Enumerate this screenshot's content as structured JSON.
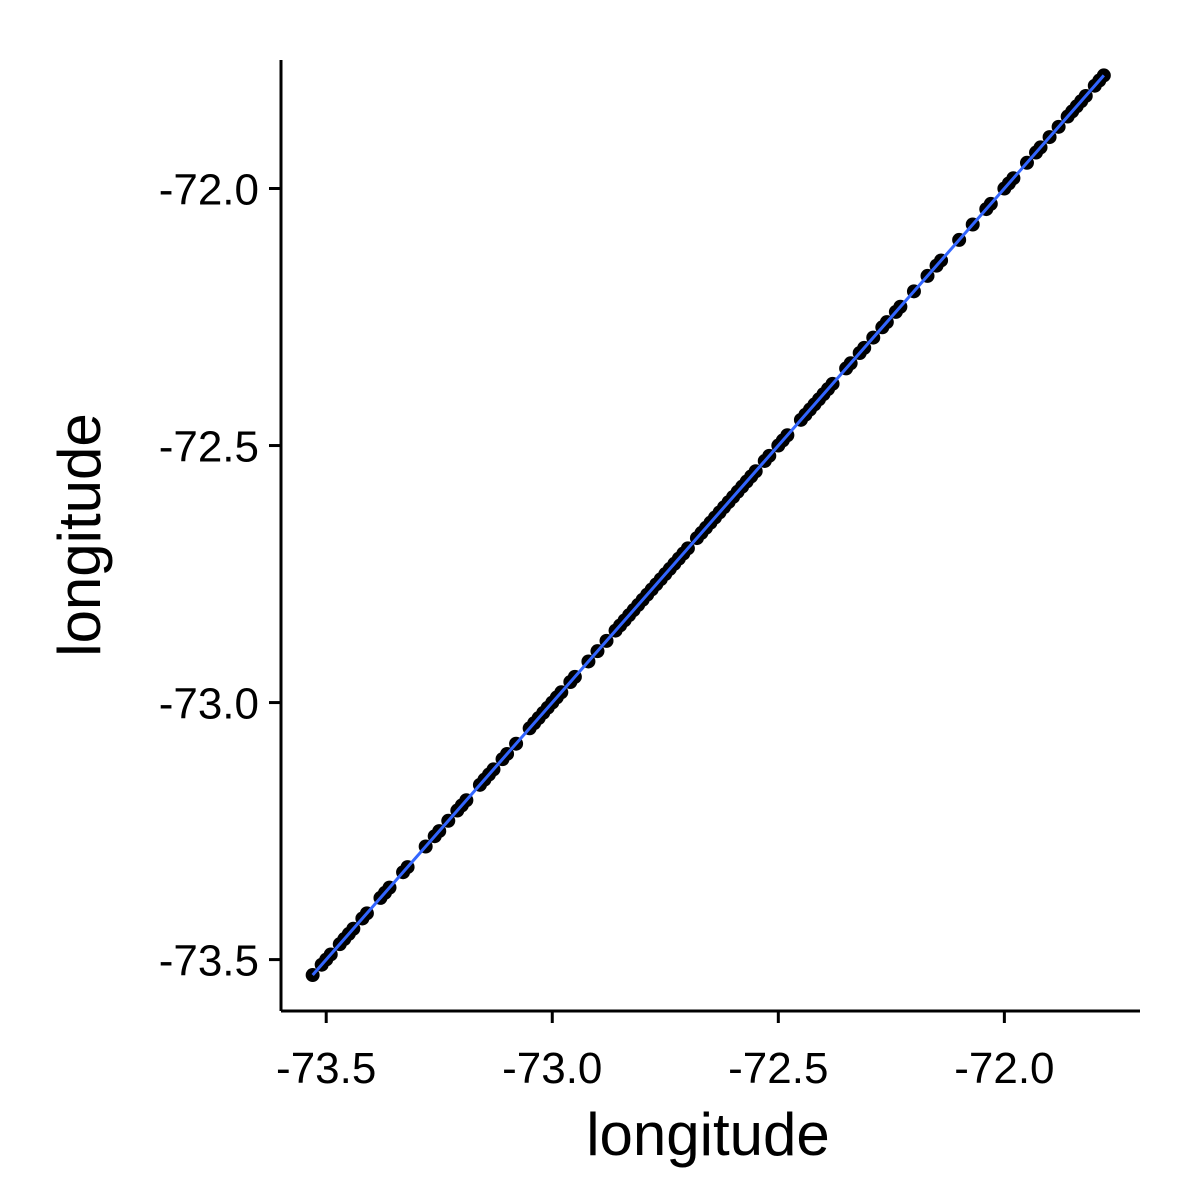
{
  "chart_data": {
    "type": "scatter",
    "title": "",
    "xlabel": "longitude",
    "ylabel": "longitude",
    "xlim": [
      -73.6,
      -71.7
    ],
    "ylim": [
      -73.6,
      -71.75
    ],
    "x_ticks": [
      -73.5,
      -73.0,
      -72.5,
      -72.0
    ],
    "y_ticks": [
      -73.5,
      -73.0,
      -72.5,
      -72.0
    ],
    "x_tick_labels": [
      "-73.5",
      "-73.0",
      "-72.5",
      "-72.0"
    ],
    "y_tick_labels": [
      "-73.5",
      "-73.0",
      "-72.5",
      "-72.0"
    ],
    "grid": false,
    "legend": "none",
    "point_color": "#000000",
    "fit_line": {
      "type": "linear",
      "color": "#3366ff",
      "x": [
        -73.53,
        -71.78
      ],
      "y": [
        -73.53,
        -71.78
      ]
    },
    "points": {
      "x": [
        -73.53,
        -73.51,
        -73.5,
        -73.49,
        -73.47,
        -73.46,
        -73.45,
        -73.44,
        -73.42,
        -73.41,
        -73.38,
        -73.37,
        -73.36,
        -73.33,
        -73.32,
        -73.28,
        -73.26,
        -73.25,
        -73.23,
        -73.21,
        -73.2,
        -73.19,
        -73.16,
        -73.15,
        -73.14,
        -73.13,
        -73.11,
        -73.1,
        -73.08,
        -73.05,
        -73.04,
        -73.03,
        -73.02,
        -73.01,
        -73.0,
        -72.99,
        -72.98,
        -72.96,
        -72.95,
        -72.92,
        -72.9,
        -72.88,
        -72.86,
        -72.85,
        -72.84,
        -72.83,
        -72.82,
        -72.81,
        -72.8,
        -72.79,
        -72.78,
        -72.77,
        -72.76,
        -72.75,
        -72.74,
        -72.73,
        -72.72,
        -72.71,
        -72.7,
        -72.68,
        -72.67,
        -72.66,
        -72.65,
        -72.64,
        -72.63,
        -72.62,
        -72.61,
        -72.6,
        -72.59,
        -72.58,
        -72.57,
        -72.56,
        -72.55,
        -72.53,
        -72.52,
        -72.5,
        -72.49,
        -72.48,
        -72.45,
        -72.44,
        -72.43,
        -72.42,
        -72.41,
        -72.4,
        -72.39,
        -72.38,
        -72.35,
        -72.34,
        -72.32,
        -72.31,
        -72.29,
        -72.27,
        -72.26,
        -72.24,
        -72.23,
        -72.2,
        -72.17,
        -72.15,
        -72.14,
        -72.1,
        -72.07,
        -72.04,
        -72.03,
        -72.0,
        -71.99,
        -71.98,
        -71.95,
        -71.93,
        -71.92,
        -71.9,
        -71.88,
        -71.86,
        -71.85,
        -71.84,
        -71.83,
        -71.82,
        -71.8,
        -71.79,
        -71.78
      ],
      "y": [
        -73.53,
        -73.51,
        -73.5,
        -73.49,
        -73.47,
        -73.46,
        -73.45,
        -73.44,
        -73.42,
        -73.41,
        -73.38,
        -73.37,
        -73.36,
        -73.33,
        -73.32,
        -73.28,
        -73.26,
        -73.25,
        -73.23,
        -73.21,
        -73.2,
        -73.19,
        -73.16,
        -73.15,
        -73.14,
        -73.13,
        -73.11,
        -73.1,
        -73.08,
        -73.05,
        -73.04,
        -73.03,
        -73.02,
        -73.01,
        -73.0,
        -72.99,
        -72.98,
        -72.96,
        -72.95,
        -72.92,
        -72.9,
        -72.88,
        -72.86,
        -72.85,
        -72.84,
        -72.83,
        -72.82,
        -72.81,
        -72.8,
        -72.79,
        -72.78,
        -72.77,
        -72.76,
        -72.75,
        -72.74,
        -72.73,
        -72.72,
        -72.71,
        -72.7,
        -72.68,
        -72.67,
        -72.66,
        -72.65,
        -72.64,
        -72.63,
        -72.62,
        -72.61,
        -72.6,
        -72.59,
        -72.58,
        -72.57,
        -72.56,
        -72.55,
        -72.53,
        -72.52,
        -72.5,
        -72.49,
        -72.48,
        -72.45,
        -72.44,
        -72.43,
        -72.42,
        -72.41,
        -72.4,
        -72.39,
        -72.38,
        -72.35,
        -72.34,
        -72.32,
        -72.31,
        -72.29,
        -72.27,
        -72.26,
        -72.24,
        -72.23,
        -72.2,
        -72.17,
        -72.15,
        -72.14,
        -72.1,
        -72.07,
        -72.04,
        -72.03,
        -72.0,
        -71.99,
        -71.98,
        -71.95,
        -71.93,
        -71.92,
        -71.9,
        -71.88,
        -71.86,
        -71.85,
        -71.84,
        -71.83,
        -71.82,
        -71.8,
        -71.79,
        -71.78
      ]
    }
  }
}
